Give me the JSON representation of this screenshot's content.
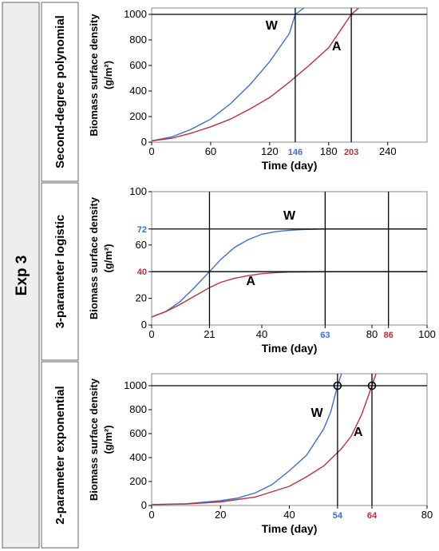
{
  "experiment_label": "Exp 3",
  "colors": {
    "W": "#3a6fd6",
    "A": "#c0303a",
    "frame_bg": "#eeeeee",
    "frame_border": "#666666",
    "ref_line": "#000000"
  },
  "chart_data": [
    {
      "type": "line",
      "row_label": "Second-degree polynomial",
      "xlabel": "Time (day)",
      "ylabel": "Biomass surface density",
      "ylabel_unit": "(g/m²)",
      "xlim": [
        0,
        280
      ],
      "ylim": [
        0,
        1050
      ],
      "x_ticks": [
        "0",
        "60",
        "120",
        "180",
        "240"
      ],
      "x_tick_values": [
        0,
        60,
        120,
        180,
        240
      ],
      "y_ticks": [
        "0",
        "200",
        "400",
        "600",
        "800",
        "1000"
      ],
      "y_tick_values": [
        0,
        200,
        400,
        600,
        800,
        1000
      ],
      "series": [
        {
          "name": "W",
          "color_key": "W",
          "x": [
            0,
            20,
            40,
            60,
            80,
            100,
            120,
            140,
            146,
            160
          ],
          "y": [
            10,
            40,
            100,
            180,
            300,
            450,
            630,
            850,
            1000,
            1080
          ]
        },
        {
          "name": "A",
          "color_key": "A",
          "x": [
            0,
            20,
            40,
            60,
            80,
            100,
            120,
            140,
            160,
            180,
            203,
            215
          ],
          "y": [
            10,
            30,
            70,
            120,
            180,
            260,
            350,
            470,
            600,
            740,
            1000,
            1080
          ]
        }
      ],
      "hlines": [
        1000
      ],
      "vlines": [
        {
          "value": 146,
          "label": "146",
          "color_key": "W"
        },
        {
          "value": 203,
          "label": "203",
          "color_key": "A"
        }
      ],
      "series_labels": [
        {
          "text": "W",
          "x": 122,
          "y": 880
        },
        {
          "text": "A",
          "x": 188,
          "y": 720
        }
      ]
    },
    {
      "type": "line",
      "row_label": "3-parameter logistic",
      "xlabel": "Time (day)",
      "ylabel": "Biomass surface density",
      "ylabel_unit": "(g/m²)",
      "xlim": [
        0,
        100
      ],
      "ylim": [
        0,
        100
      ],
      "x_ticks": [
        "0",
        "21",
        "40",
        "63",
        "80",
        "86",
        "100"
      ],
      "x_tick_values": [
        0,
        21,
        40,
        63,
        80,
        86,
        100
      ],
      "x_tick_color_keys": [
        null,
        null,
        null,
        "W",
        null,
        "A",
        null
      ],
      "y_ticks": [
        "0",
        "20",
        "40",
        "60",
        "72",
        "100"
      ],
      "y_tick_values": [
        0,
        20,
        40,
        60,
        72,
        100
      ],
      "y_tick_color_keys": [
        null,
        null,
        "A",
        null,
        "W",
        null
      ],
      "series": [
        {
          "name": "W",
          "color_key": "W",
          "x": [
            0,
            5,
            10,
            15,
            21,
            25,
            30,
            35,
            40,
            45,
            50,
            55,
            63,
            70,
            80,
            100
          ],
          "y": [
            6,
            10,
            17,
            27,
            40,
            49,
            58,
            64,
            68,
            70,
            71,
            71.6,
            72,
            72,
            72,
            72
          ]
        },
        {
          "name": "A",
          "color_key": "A",
          "x": [
            0,
            5,
            10,
            15,
            21,
            25,
            30,
            35,
            40,
            45,
            50,
            60,
            70,
            86,
            100
          ],
          "y": [
            6,
            10,
            15,
            21,
            28,
            32,
            35,
            37,
            38.5,
            39.3,
            39.7,
            39.9,
            40,
            40,
            40
          ]
        }
      ],
      "hlines": [
        72,
        40
      ],
      "vlines": [
        {
          "value": 21,
          "label": "",
          "color_key": null
        },
        {
          "value": 63,
          "label": "",
          "color_key": null
        },
        {
          "value": 86,
          "label": "",
          "color_key": null
        }
      ],
      "series_labels": [
        {
          "text": "W",
          "x": 50,
          "y": 79
        },
        {
          "text": "A",
          "x": 36,
          "y": 30
        }
      ]
    },
    {
      "type": "line",
      "row_label": "2-parameter exponential",
      "xlabel": "Time (day)",
      "ylabel": "Biomass surface density",
      "ylabel_unit": "(g/m²)",
      "xlim": [
        0,
        80
      ],
      "ylim": [
        0,
        1100
      ],
      "x_ticks": [
        "0",
        "20",
        "40",
        "54",
        "64",
        "80"
      ],
      "x_tick_values": [
        0,
        20,
        40,
        54,
        64,
        80
      ],
      "x_tick_color_keys": [
        null,
        null,
        null,
        "W",
        "A",
        null
      ],
      "y_ticks": [
        "0",
        "200",
        "400",
        "600",
        "800",
        "1000"
      ],
      "y_tick_values": [
        0,
        200,
        400,
        600,
        800,
        1000
      ],
      "series": [
        {
          "name": "W",
          "color_key": "W",
          "x": [
            0,
            10,
            20,
            25,
            30,
            35,
            40,
            45,
            50,
            52,
            54,
            55.5
          ],
          "y": [
            8,
            15,
            40,
            62,
            104,
            175,
            290,
            420,
            640,
            780,
            1000,
            1130
          ]
        },
        {
          "name": "A",
          "color_key": "A",
          "x": [
            0,
            10,
            20,
            30,
            40,
            45,
            50,
            55,
            58,
            61,
            64,
            65.5
          ],
          "y": [
            8,
            12,
            30,
            70,
            160,
            240,
            330,
            470,
            580,
            760,
            1000,
            1130
          ]
        }
      ],
      "hlines": [
        1000
      ],
      "vlines": [
        {
          "value": 54,
          "label": "",
          "color_key": null
        },
        {
          "value": 64,
          "label": "",
          "color_key": null
        }
      ],
      "markers": [
        {
          "x": 54,
          "y": 1000
        },
        {
          "x": 64,
          "y": 1000
        }
      ],
      "series_labels": [
        {
          "text": "W",
          "x": 48,
          "y": 740
        },
        {
          "text": "A",
          "x": 60,
          "y": 580
        }
      ]
    }
  ]
}
